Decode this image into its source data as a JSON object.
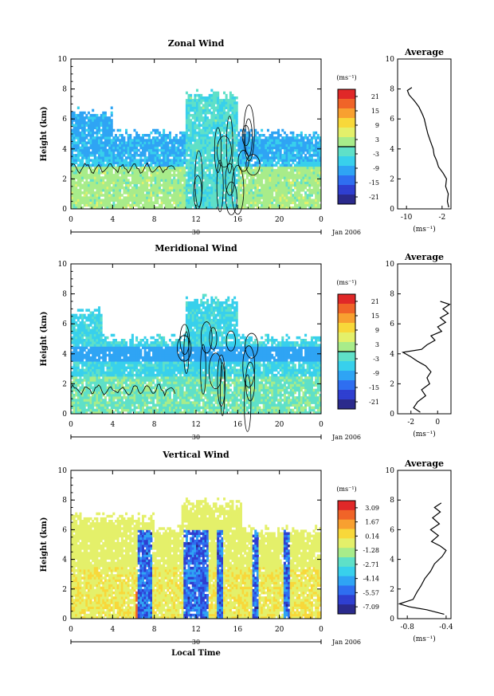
{
  "figure": {
    "xlabel": "Local Time",
    "date_label": "Jan 2006",
    "date_tick": "30"
  },
  "chart_data": [
    {
      "type": "heatmap",
      "title": "Zonal Wind",
      "xlabel": "",
      "ylabel": "Height (km)",
      "xlim": [
        0,
        24
      ],
      "ylim": [
        0,
        10
      ],
      "xticks": [
        "0",
        "4",
        "8",
        "12",
        "16",
        "20",
        "0"
      ],
      "yticks": [
        "0",
        "2",
        "4",
        "6",
        "8",
        "10"
      ],
      "colorbar": {
        "units": "(ms⁻¹)",
        "ticks": [
          "21",
          "15",
          "9",
          "3",
          "-3",
          "-9",
          "-15",
          "-21"
        ],
        "zero_line_index": 4
      },
      "profile": {
        "title": "Average",
        "xlabel": "(ms⁻¹)",
        "xlim": [
          -12,
          0
        ],
        "xticks": [
          "-10",
          "-2"
        ],
        "points": [
          [
            -0.5,
            0.1
          ],
          [
            -0.8,
            0.5
          ],
          [
            -0.6,
            1.0
          ],
          [
            -1.2,
            1.5
          ],
          [
            -1.0,
            2.0
          ],
          [
            -1.8,
            2.4
          ],
          [
            -2.8,
            2.8
          ],
          [
            -3.2,
            3.2
          ],
          [
            -3.8,
            3.6
          ],
          [
            -4.0,
            4.0
          ],
          [
            -4.6,
            4.5
          ],
          [
            -5.2,
            5.0
          ],
          [
            -5.6,
            5.5
          ],
          [
            -6.0,
            6.0
          ],
          [
            -6.4,
            6.3
          ],
          [
            -7.2,
            6.8
          ],
          [
            -8.2,
            7.2
          ],
          [
            -9.4,
            7.6
          ],
          [
            -9.8,
            7.9
          ],
          [
            -8.8,
            8.1
          ]
        ]
      }
    },
    {
      "type": "heatmap",
      "title": "Meridional Wind",
      "xlabel": "",
      "ylabel": "Height (km)",
      "xlim": [
        0,
        24
      ],
      "ylim": [
        0,
        10
      ],
      "xticks": [
        "0",
        "4",
        "8",
        "12",
        "16",
        "20",
        "0"
      ],
      "yticks": [
        "0",
        "2",
        "4",
        "6",
        "8",
        "10"
      ],
      "colorbar": {
        "units": "(ms⁻¹)",
        "ticks": [
          "21",
          "15",
          "9",
          "3",
          "-3",
          "-9",
          "-15",
          "-21"
        ],
        "zero_line_index": 4
      },
      "profile": {
        "title": "Average",
        "xlabel": "(ms⁻¹)",
        "xlim": [
          -3,
          1
        ],
        "xticks": [
          "-2",
          "0"
        ],
        "points": [
          [
            -1.3,
            0.1
          ],
          [
            -1.8,
            0.4
          ],
          [
            -1.5,
            0.8
          ],
          [
            -0.9,
            1.2
          ],
          [
            -1.2,
            1.6
          ],
          [
            -0.6,
            2.0
          ],
          [
            -0.8,
            2.4
          ],
          [
            -0.5,
            2.8
          ],
          [
            -0.9,
            3.2
          ],
          [
            -1.5,
            3.5
          ],
          [
            -2.0,
            3.8
          ],
          [
            -2.6,
            4.1
          ],
          [
            -1.2,
            4.3
          ],
          [
            -0.8,
            4.6
          ],
          [
            -0.2,
            4.9
          ],
          [
            -0.5,
            5.2
          ],
          [
            0.3,
            5.5
          ],
          [
            0.0,
            5.8
          ],
          [
            0.6,
            6.1
          ],
          [
            0.2,
            6.4
          ],
          [
            0.8,
            6.7
          ],
          [
            0.4,
            7.0
          ],
          [
            0.9,
            7.3
          ],
          [
            0.2,
            7.5
          ]
        ]
      }
    },
    {
      "type": "heatmap",
      "title": "Vertical Wind",
      "xlabel": "Local Time",
      "ylabel": "Height (km)",
      "xlim": [
        0,
        24
      ],
      "ylim": [
        0,
        10
      ],
      "xticks": [
        "0",
        "4",
        "8",
        "12",
        "16",
        "20",
        "0"
      ],
      "yticks": [
        "0",
        "2",
        "4",
        "6",
        "8",
        "10"
      ],
      "colorbar": {
        "units": "(ms⁻¹)",
        "ticks": [
          "3.09",
          "1.67",
          "0.14",
          "-1.28",
          "-2.71",
          "-4.14",
          "-5.57",
          "-7.09"
        ],
        "zero_line_index": null
      },
      "profile": {
        "title": "Average",
        "xlabel": "(ms⁻¹)",
        "xlim": [
          -0.9,
          -0.35
        ],
        "xticks": [
          "-0.8",
          "-0.4"
        ],
        "points": [
          [
            -0.42,
            0.3
          ],
          [
            -0.6,
            0.6
          ],
          [
            -0.78,
            0.8
          ],
          [
            -0.88,
            1.0
          ],
          [
            -0.74,
            1.3
          ],
          [
            -0.7,
            1.8
          ],
          [
            -0.66,
            2.2
          ],
          [
            -0.62,
            2.7
          ],
          [
            -0.56,
            3.2
          ],
          [
            -0.52,
            3.7
          ],
          [
            -0.44,
            4.2
          ],
          [
            -0.4,
            4.6
          ],
          [
            -0.46,
            4.9
          ],
          [
            -0.55,
            5.2
          ],
          [
            -0.48,
            5.6
          ],
          [
            -0.56,
            6.0
          ],
          [
            -0.47,
            6.4
          ],
          [
            -0.54,
            6.8
          ],
          [
            -0.46,
            7.2
          ],
          [
            -0.52,
            7.5
          ],
          [
            -0.45,
            7.8
          ]
        ]
      }
    }
  ]
}
